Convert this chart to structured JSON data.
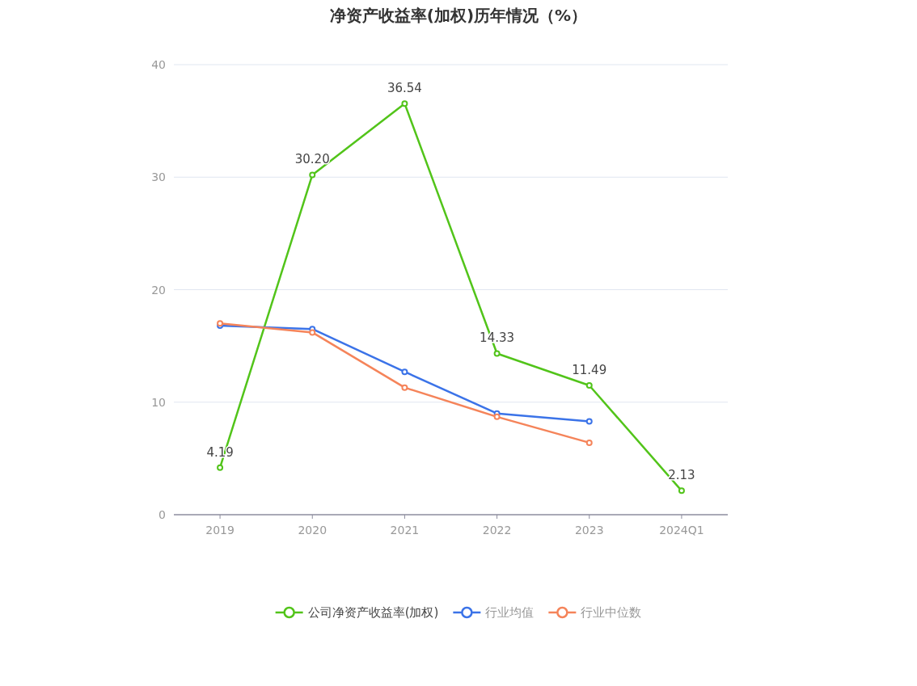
{
  "chart_data": {
    "type": "line",
    "title": "净资产收益率(加权)历年情况（%）",
    "categories": [
      "2019",
      "2020",
      "2021",
      "2022",
      "2023",
      "2024Q1"
    ],
    "series": [
      {
        "name": "公司净资产收益率(加权)",
        "color": "#52c41a",
        "values": [
          4.19,
          30.2,
          36.54,
          14.33,
          11.49,
          2.13
        ],
        "value_labels": [
          "4.19",
          "30.20",
          "36.54",
          "14.33",
          "11.49",
          "2.13"
        ]
      },
      {
        "name": "行业均值",
        "color": "#3b73e8",
        "values": [
          16.8,
          16.5,
          12.7,
          9.0,
          8.3,
          null
        ]
      },
      {
        "name": "行业中位数",
        "color": "#f5845a",
        "values": [
          17.0,
          16.2,
          11.3,
          8.7,
          6.4,
          null
        ]
      }
    ],
    "ylim": [
      0,
      40
    ],
    "yticks": [
      0,
      10,
      20,
      30,
      40
    ],
    "grid": "y",
    "legend": "bottom",
    "marker": "circle",
    "line_style": "solid"
  }
}
